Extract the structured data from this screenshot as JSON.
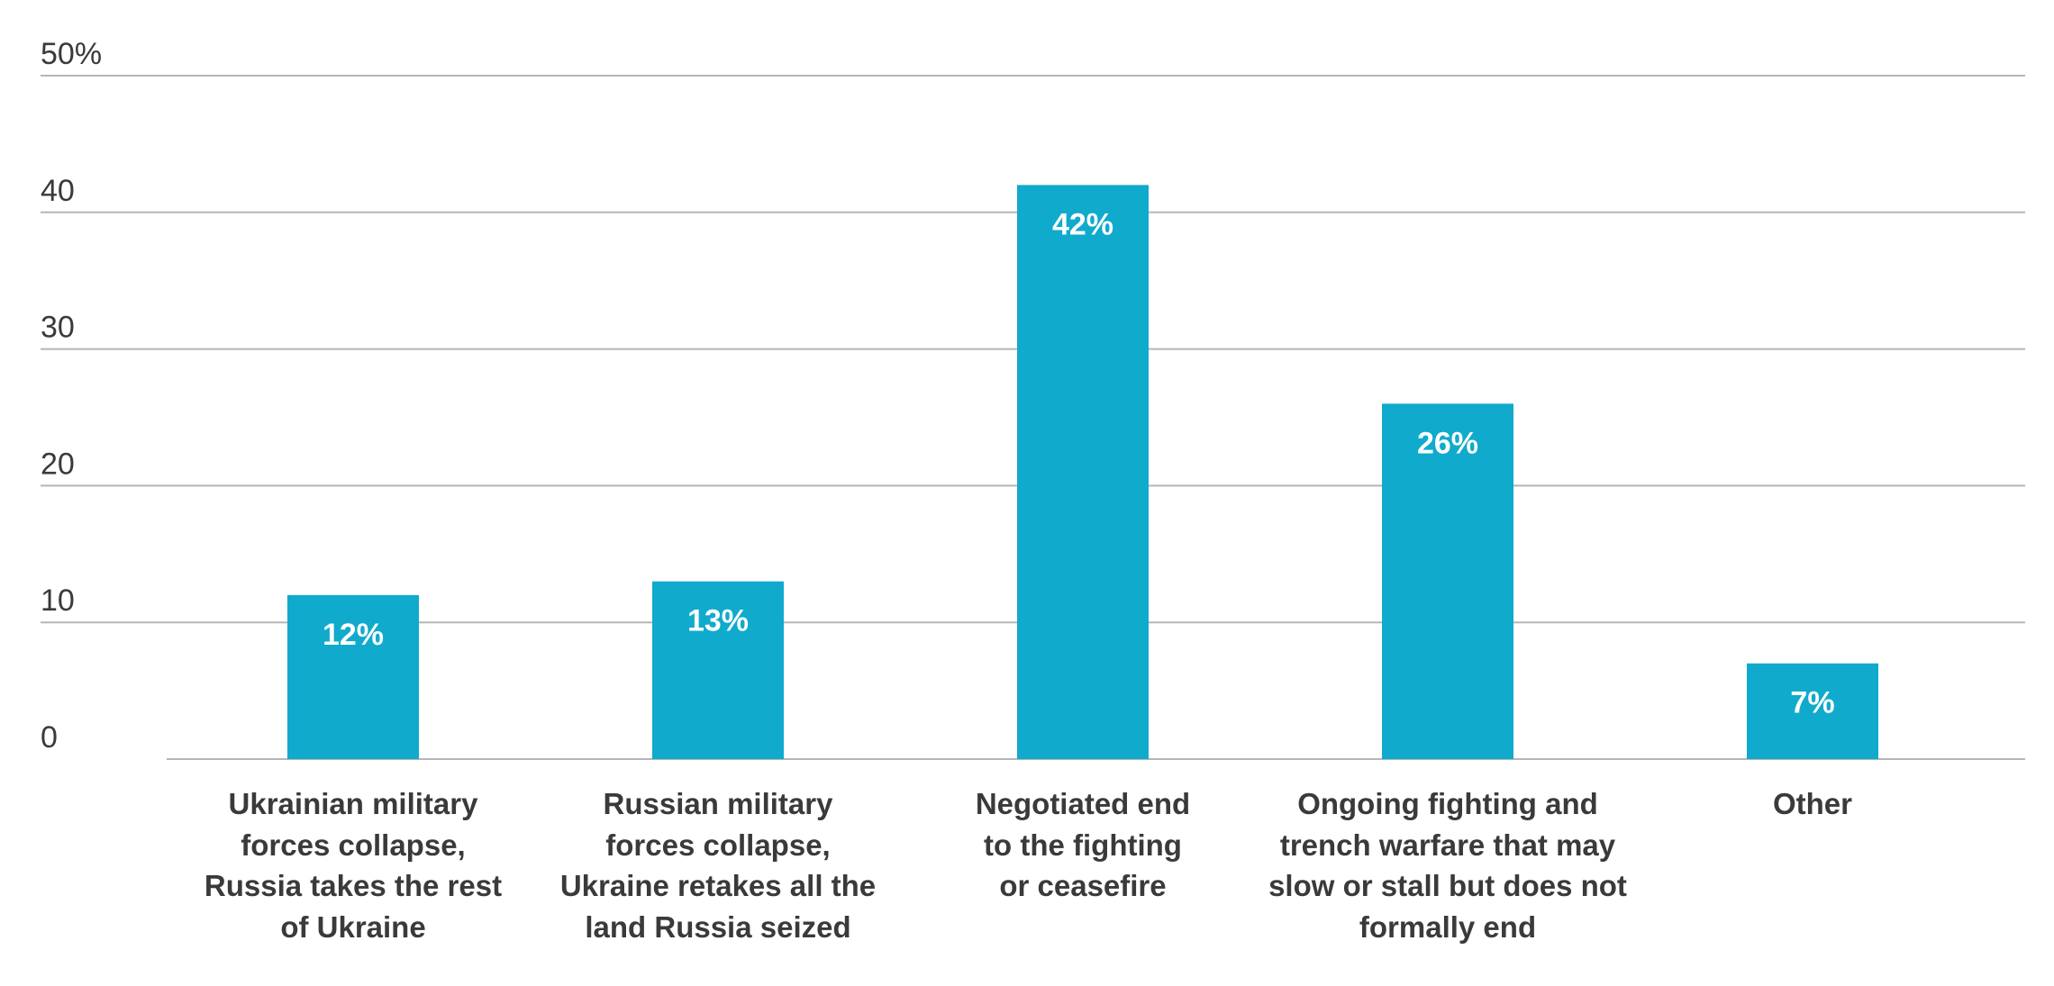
{
  "chart_data": {
    "type": "bar",
    "categories": [
      [
        "Ukrainian military",
        "forces collapse,",
        "Russia takes the rest",
        "of Ukraine"
      ],
      [
        "Russian military",
        "forces collapse,",
        "Ukraine retakes all the",
        "land Russia seized"
      ],
      [
        "Negotiated end",
        "to the fighting",
        "or ceasefire"
      ],
      [
        "Ongoing fighting and",
        "trench warfare that may",
        "slow or stall but does not",
        "formally end"
      ],
      [
        "Other"
      ]
    ],
    "values": [
      12,
      13,
      42,
      26,
      7
    ],
    "data_labels": [
      "12%",
      "13%",
      "42%",
      "26%",
      "7%"
    ],
    "y_ticks": [
      0,
      10,
      20,
      30,
      40,
      50
    ],
    "y_tick_labels": [
      "0",
      "10",
      "20",
      "30",
      "40",
      "50%"
    ],
    "ylim": [
      0,
      50
    ],
    "grid": true,
    "bar_color": "#10aacd"
  }
}
